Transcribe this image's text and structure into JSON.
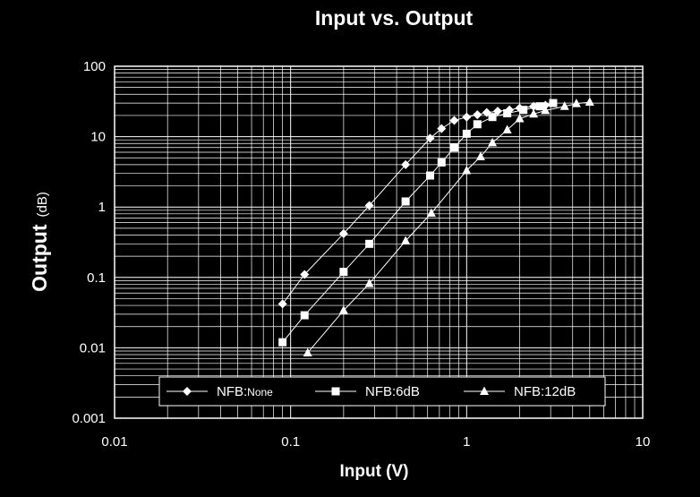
{
  "chart_data": {
    "type": "line",
    "title": "Input vs. Output",
    "xlabel": "Input (V)",
    "ylabel": "Output",
    "ylabel_unit": "(dB)",
    "x_scale": "log",
    "y_scale": "log",
    "xlim": [
      0.01,
      10
    ],
    "ylim": [
      0.001,
      100
    ],
    "x_ticks": [
      "0.01",
      "0.1",
      "1",
      "10"
    ],
    "y_ticks": [
      "0.001",
      "0.01",
      "0.1",
      "1",
      "10",
      "100"
    ],
    "grid": true,
    "legend_position": "bottom-center",
    "background": "#000000",
    "foreground": "#ffffff",
    "series": [
      {
        "name": "NFB:None",
        "name_main": "NFB:",
        "name_sub": "None",
        "marker": "diamond",
        "points": [
          [
            0.09,
            0.042
          ],
          [
            0.12,
            0.11
          ],
          [
            0.2,
            0.42
          ],
          [
            0.28,
            1.05
          ],
          [
            0.45,
            4.0
          ],
          [
            0.62,
            9.5
          ],
          [
            0.72,
            13.0
          ],
          [
            0.85,
            17.0
          ],
          [
            1.0,
            19.0
          ],
          [
            1.15,
            20.5
          ],
          [
            1.3,
            22.0
          ],
          [
            1.5,
            23.0
          ],
          [
            1.75,
            24.0
          ],
          [
            2.0,
            25.5
          ],
          [
            2.4,
            27.0
          ],
          [
            2.8,
            28.0
          ]
        ]
      },
      {
        "name": "NFB:6dB",
        "name_main": "NFB:6dB",
        "name_sub": "",
        "marker": "square",
        "points": [
          [
            0.09,
            0.012
          ],
          [
            0.12,
            0.029
          ],
          [
            0.2,
            0.12
          ],
          [
            0.28,
            0.3
          ],
          [
            0.45,
            1.2
          ],
          [
            0.62,
            2.8
          ],
          [
            0.72,
            4.3
          ],
          [
            0.85,
            7.0
          ],
          [
            1.0,
            11.0
          ],
          [
            1.15,
            15.0
          ],
          [
            1.4,
            19.0
          ],
          [
            1.7,
            21.5
          ],
          [
            2.1,
            24.0
          ],
          [
            2.6,
            27.0
          ],
          [
            3.1,
            30.0
          ]
        ]
      },
      {
        "name": "NFB:12dB",
        "name_main": "NFB:12dB",
        "name_sub": "",
        "marker": "triangle",
        "points": [
          [
            0.125,
            0.0085
          ],
          [
            0.2,
            0.034
          ],
          [
            0.28,
            0.082
          ],
          [
            0.45,
            0.33
          ],
          [
            0.63,
            0.82
          ],
          [
            1.0,
            3.3
          ],
          [
            1.2,
            5.2
          ],
          [
            1.4,
            8.2
          ],
          [
            1.7,
            12.5
          ],
          [
            2.0,
            18.0
          ],
          [
            2.4,
            21.0
          ],
          [
            2.8,
            23.5
          ],
          [
            3.6,
            27.0
          ],
          [
            4.2,
            29.5
          ],
          [
            5.0,
            31.0
          ]
        ]
      }
    ]
  }
}
